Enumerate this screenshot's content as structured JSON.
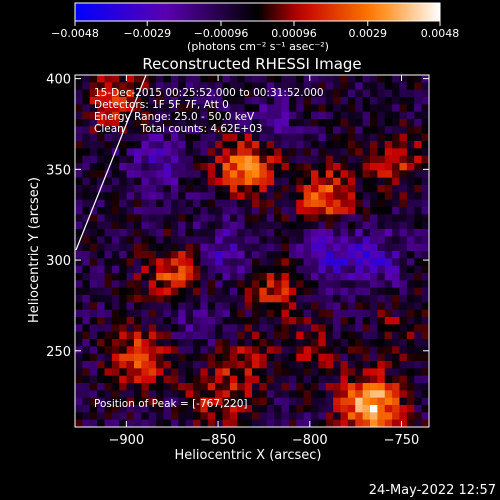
{
  "chart_data": {
    "type": "heatmap",
    "title": "Reconstructed RHESSI Image",
    "xlabel": "Heliocentric X (arcsec)",
    "ylabel": "Heliocentric Y (arcsec)",
    "xlim": [
      -928,
      -735
    ],
    "ylim": [
      208,
      402
    ],
    "xticks": [
      -900,
      -850,
      -800,
      -750
    ],
    "xtick_labels": [
      "−900",
      "−850",
      "−800",
      "−750"
    ],
    "yticks": [
      250,
      300,
      350,
      400
    ],
    "ytick_labels": [
      "250",
      "300",
      "350",
      "400"
    ],
    "colorbar": {
      "range": [
        -0.0048,
        0.0048
      ],
      "ticks": [
        -0.0048,
        -0.0029,
        -0.00096,
        0.00096,
        0.0029,
        0.0048
      ],
      "tick_labels": [
        "−0.0048",
        "−0.0029",
        "−0.00096",
        "0.00096",
        "0.0029",
        "0.0048"
      ],
      "units": "(photons cm⁻² s⁻¹ asec⁻²)",
      "colors": [
        "#0000ff",
        "#5a00b0",
        "#000000",
        "#c80000",
        "#ff8000",
        "#ffffff"
      ]
    },
    "annotations": [
      "15-Dec-2015 00:25:52.000 to 00:31:52.000",
      "Detectors: 1F 5F 7F, Att 0",
      "Energy Range: 25.0 - 50.0 keV",
      "Clean     Total counts: 4.62E+03"
    ],
    "peak_label": "Position of Peak = [-767,220]",
    "peak": [
      -767,
      220
    ],
    "sources": [
      {
        "x": -767,
        "y": 220,
        "value": 0.0048
      },
      {
        "x": -835,
        "y": 352,
        "value": 0.0036
      },
      {
        "x": -792,
        "y": 335,
        "value": 0.003
      },
      {
        "x": -893,
        "y": 245,
        "value": 0.003
      },
      {
        "x": -874,
        "y": 292,
        "value": 0.0026
      },
      {
        "x": -905,
        "y": 388,
        "value": 0.0022
      },
      {
        "x": -820,
        "y": 285,
        "value": 0.0022
      },
      {
        "x": -753,
        "y": 355,
        "value": 0.002
      },
      {
        "x": -850,
        "y": 225,
        "value": 0.0018
      },
      {
        "x": -835,
        "y": 243,
        "value": 0.0014
      },
      {
        "x": -800,
        "y": 250,
        "value": 0.0012
      },
      {
        "x": -752,
        "y": 262,
        "value": 0.001
      },
      {
        "x": -845,
        "y": 305,
        "value": -0.0018
      },
      {
        "x": -790,
        "y": 305,
        "value": -0.002
      },
      {
        "x": -883,
        "y": 355,
        "value": -0.0016
      },
      {
        "x": -765,
        "y": 300,
        "value": -0.0018
      },
      {
        "x": -863,
        "y": 268,
        "value": -0.0012
      },
      {
        "x": -820,
        "y": 376,
        "value": -0.001
      }
    ]
  },
  "timestamp": "24-May-2022 12:57"
}
